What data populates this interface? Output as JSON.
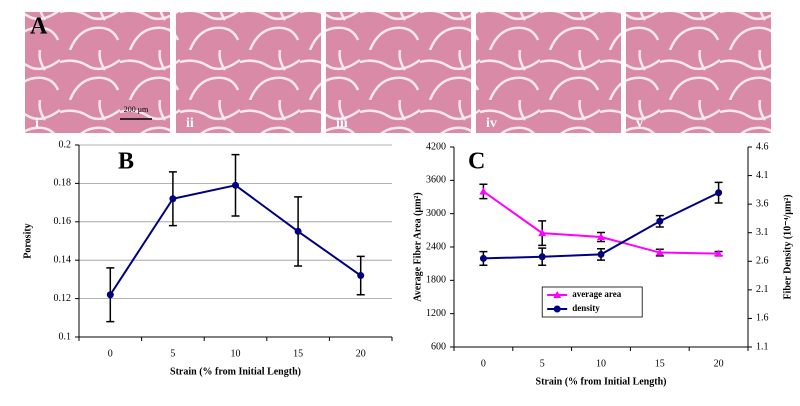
{
  "panel_a": {
    "label": "A",
    "images": [
      "i",
      "ii",
      "iii",
      "iv",
      "v"
    ],
    "scale_bar": "200 μm"
  },
  "chart_data": [
    {
      "type": "line",
      "panel_label": "B",
      "y_label": "Porosity",
      "x_label": "Strain (% from Initial Length)",
      "categories": [
        "0",
        "5",
        "10",
        "15",
        "20"
      ],
      "values": [
        0.122,
        0.172,
        0.179,
        0.155,
        0.132
      ],
      "errors": [
        0.014,
        0.014,
        0.016,
        0.018,
        0.01
      ],
      "color": "#000080",
      "marker": "circle",
      "ylim": [
        0.1,
        0.2
      ],
      "yticks": [
        0.1,
        0.12,
        0.14,
        0.16,
        0.18,
        0.2
      ],
      "grid": true
    },
    {
      "type": "line",
      "panel_label": "C",
      "y_label": "Average Fiber Area (μm²)",
      "y2_label": "Fiber Density (10⁻⁴/μm²)",
      "x_label": "Strain (% from Initial Length)",
      "categories": [
        "0",
        "5",
        "10",
        "15",
        "20"
      ],
      "series": [
        {
          "name": "average area",
          "color": "#ff00ff",
          "marker": "triangle",
          "values": [
            3400,
            2650,
            2580,
            2300,
            2280
          ],
          "errors": [
            130,
            220,
            80,
            60,
            40
          ]
        },
        {
          "name": "density",
          "color": "#000080",
          "marker": "circle",
          "axis": "y2",
          "values": [
            2.65,
            2.68,
            2.72,
            3.3,
            3.8
          ],
          "errors": [
            0.12,
            0.15,
            0.1,
            0.1,
            0.18
          ]
        }
      ],
      "ylim": [
        600,
        4200
      ],
      "yticks": [
        600,
        1200,
        1800,
        2400,
        3000,
        3600,
        4200
      ],
      "y2lim": [
        1.1,
        4.6
      ],
      "y2ticks": [
        1.1,
        1.6,
        2.1,
        2.6,
        3.1,
        3.6,
        4.1,
        4.6
      ],
      "grid": false,
      "legend": "lower-center"
    }
  ]
}
